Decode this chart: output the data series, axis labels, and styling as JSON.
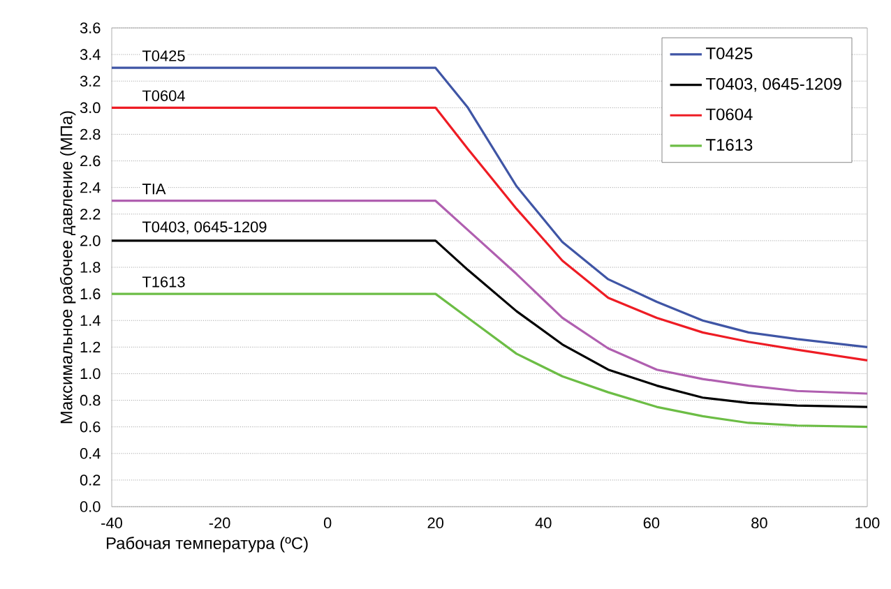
{
  "chart_data": {
    "type": "line",
    "xlabel": "Рабочая температура (ºC)",
    "ylabel": "Максимальное рабочее давление (МПа)",
    "x": [
      -40,
      20,
      26,
      35,
      43.5,
      52,
      61,
      69.5,
      78,
      87,
      100
    ],
    "series": [
      {
        "name": "T0425",
        "color": "#3f55a5",
        "values": [
          3.3,
          3.3,
          3.0,
          2.41,
          1.99,
          1.71,
          1.54,
          1.4,
          1.31,
          1.26,
          1.2
        ]
      },
      {
        "name": "T0403, 0645-1209",
        "color": "#000000",
        "values": [
          2.0,
          2.0,
          1.78,
          1.47,
          1.22,
          1.03,
          0.91,
          0.82,
          0.78,
          0.76,
          0.75
        ]
      },
      {
        "name": "T0604",
        "color": "#ee1c24",
        "values": [
          3.0,
          3.0,
          2.69,
          2.24,
          1.85,
          1.57,
          1.42,
          1.31,
          1.24,
          1.18,
          1.1
        ]
      },
      {
        "name": "T1613",
        "color": "#6cbd45",
        "values": [
          1.6,
          1.6,
          1.42,
          1.15,
          0.98,
          0.86,
          0.75,
          0.68,
          0.63,
          0.61,
          0.6
        ]
      },
      {
        "color": "#b05fb0",
        "values": [
          2.3,
          2.3,
          2.08,
          1.75,
          1.42,
          1.19,
          1.03,
          0.96,
          0.91,
          0.87,
          0.85
        ]
      }
    ],
    "annotations": [
      {
        "text": "T0425",
        "y": 3.3
      },
      {
        "text": "T0604",
        "y": 3.0
      },
      {
        "text": "TIA",
        "y": 2.3
      },
      {
        "text": "T0403, 0645-1209",
        "y": 2.0
      },
      {
        "text": "T1613",
        "y": 1.6
      }
    ],
    "xlim": [
      -40,
      100
    ],
    "xticks": [
      -40,
      -20,
      0,
      20,
      40,
      60,
      80,
      100
    ],
    "ylim": [
      0,
      3.6
    ],
    "yticks": [
      {
        "value": 0,
        "label": "0.0"
      },
      {
        "value": 0.2,
        "label": "0.2"
      },
      {
        "value": 0.4,
        "label": "0.4"
      },
      {
        "value": 0.6,
        "label": "0.6"
      },
      {
        "value": 0.8,
        "label": "0.8"
      },
      {
        "value": 1.0,
        "label": "1.0"
      },
      {
        "value": 1.2,
        "label": "1.2"
      },
      {
        "value": 1.4,
        "label": "1.4"
      },
      {
        "value": 1.6,
        "label": "1.6"
      },
      {
        "value": 1.8,
        "label": "1.8"
      },
      {
        "value": 2.0,
        "label": "2.0"
      },
      {
        "value": 2.2,
        "label": "2.2"
      },
      {
        "value": 2.4,
        "label": "2.4"
      },
      {
        "value": 2.6,
        "label": "2.6"
      },
      {
        "value": 2.8,
        "label": "2.8"
      },
      {
        "value": 3.0,
        "label": "3.0"
      },
      {
        "value": 3.2,
        "label": "3.2"
      },
      {
        "value": 3.4,
        "label": "3.4"
      },
      {
        "value": 3.6,
        "label": "3.6"
      }
    ],
    "grid": "y",
    "legend": "top right",
    "marker": "none",
    "line_style": "solid"
  }
}
